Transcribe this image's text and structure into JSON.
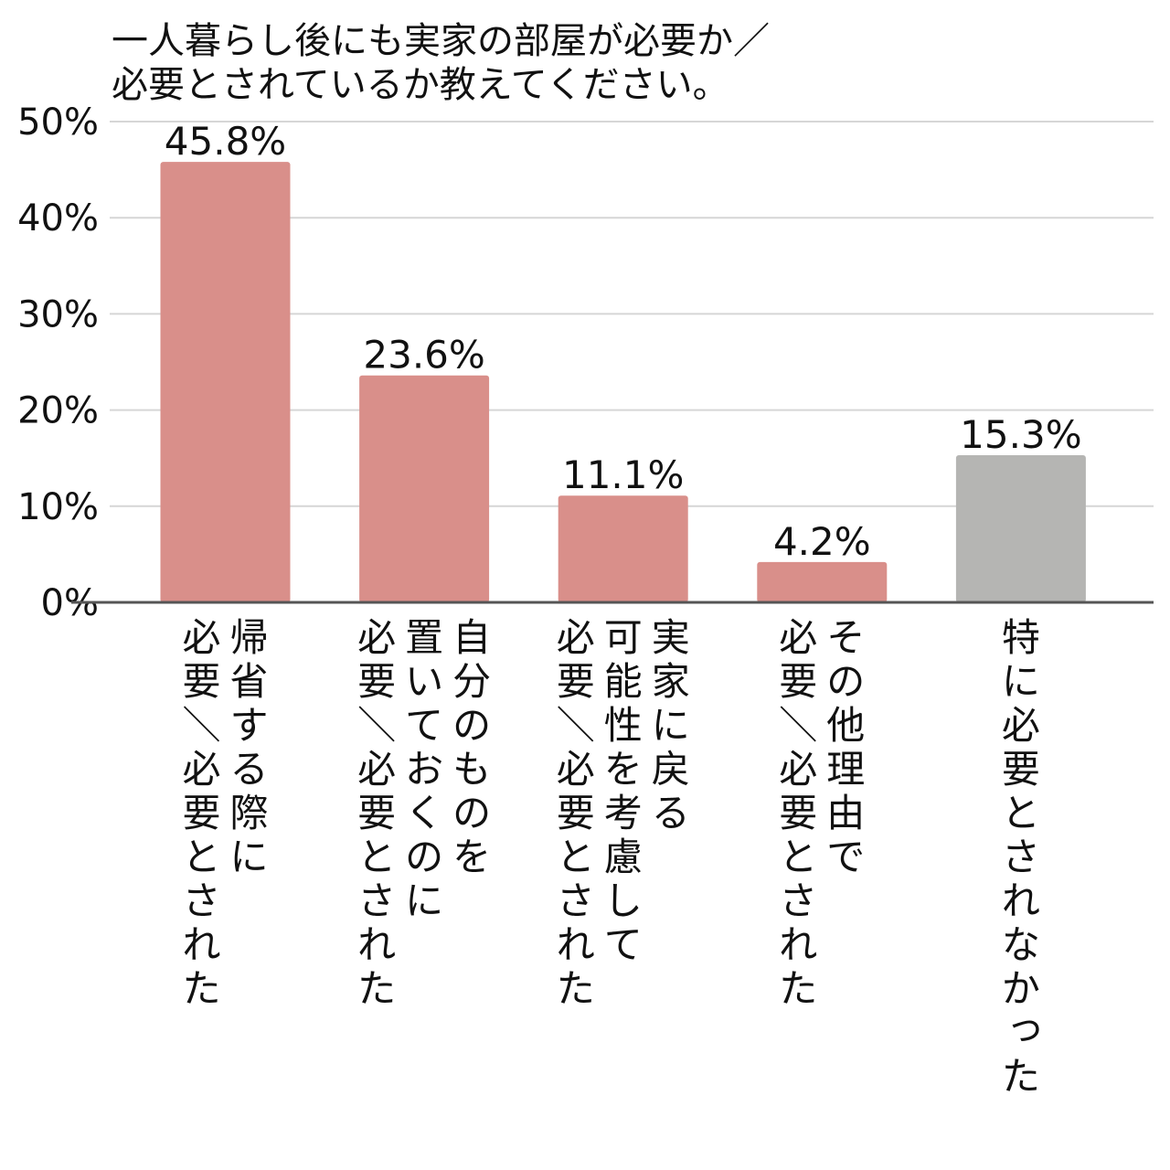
{
  "chart_data": {
    "type": "bar",
    "title_lines": [
      "一人暮らし後にも実家の部屋が必要か／",
      "必要とされているか教えてください。"
    ],
    "xlabel": "",
    "ylabel": "",
    "ylim": [
      0,
      50
    ],
    "y_ticks": [
      0,
      10,
      20,
      30,
      40,
      50
    ],
    "y_tick_labels": [
      "0%",
      "10%",
      "20%",
      "30%",
      "40%",
      "50%"
    ],
    "grid": true,
    "categories": [
      [
        "帰省する際に",
        "必要／必要とされた"
      ],
      [
        "自分のものを",
        "置いておくのに",
        "必要／必要とされた"
      ],
      [
        "実家に戻る",
        "可能性を考慮して",
        "必要／必要とされた"
      ],
      [
        "その他理由で",
        "必要／必要とされた"
      ],
      [
        "特に必要とされなかった"
      ]
    ],
    "values": [
      45.8,
      23.6,
      11.1,
      4.2,
      15.3
    ],
    "value_labels": [
      "45.8%",
      "23.6%",
      "11.1%",
      "4.2%",
      "15.3%"
    ],
    "bar_colors": [
      "#d98f8a",
      "#d98f8a",
      "#d98f8a",
      "#d98f8a",
      "#b5b5b3"
    ]
  }
}
